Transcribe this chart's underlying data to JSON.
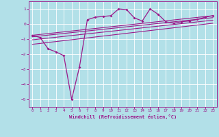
{
  "xlabel": "Windchill (Refroidissement éolien,°C)",
  "bg_color": "#b2e0e8",
  "line_color": "#9b1a8a",
  "grid_color": "#ffffff",
  "xlim": [
    -0.5,
    23.5
  ],
  "ylim": [
    -5.5,
    1.5
  ],
  "yticks": [
    1,
    0,
    -1,
    -2,
    -3,
    -4,
    -5
  ],
  "xticks": [
    0,
    1,
    2,
    3,
    4,
    5,
    6,
    7,
    8,
    9,
    10,
    11,
    12,
    13,
    14,
    15,
    16,
    17,
    18,
    19,
    20,
    21,
    22,
    23
  ],
  "scatter_x": [
    0,
    1,
    2,
    3,
    4,
    5,
    6,
    7,
    8,
    9,
    10,
    11,
    12,
    13,
    14,
    15,
    16,
    17,
    18,
    19,
    20,
    21,
    22,
    23
  ],
  "scatter_y": [
    -0.75,
    -0.9,
    -1.65,
    -1.85,
    -2.1,
    -5.0,
    -2.85,
    0.28,
    0.45,
    0.5,
    0.55,
    1.0,
    0.95,
    0.4,
    0.2,
    1.0,
    0.65,
    0.15,
    0.05,
    0.15,
    0.2,
    0.3,
    0.45,
    0.55
  ],
  "line1_x": [
    0,
    23
  ],
  "line1_y": [
    -0.75,
    0.55
  ],
  "line2_x": [
    0,
    23
  ],
  "line2_y": [
    -0.85,
    0.42
  ],
  "line3_x": [
    0,
    23
  ],
  "line3_y": [
    -1.05,
    0.25
  ],
  "line4_x": [
    0,
    23
  ],
  "line4_y": [
    -1.35,
    0.05
  ],
  "figsize": [
    3.2,
    2.0
  ],
  "dpi": 100
}
